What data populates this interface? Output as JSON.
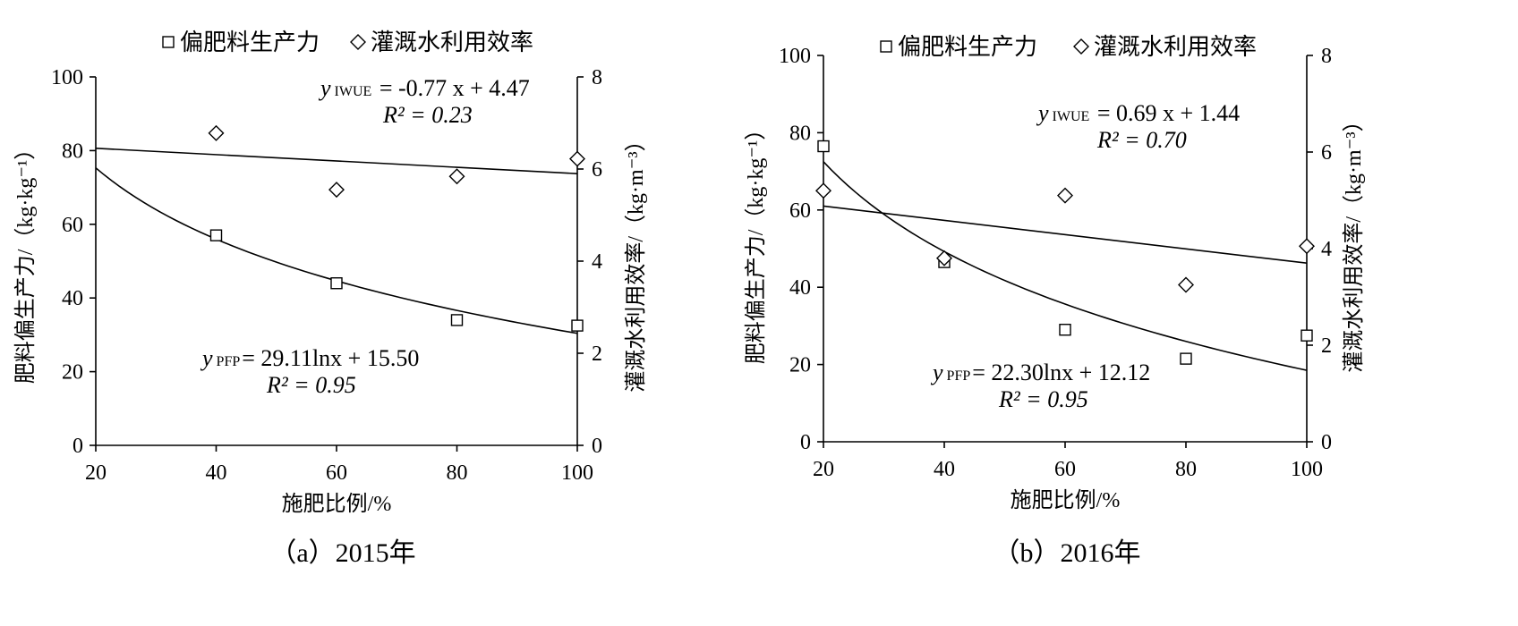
{
  "figure": {
    "chart_data": [
      {
        "type": "scatter",
        "panel_label": "（a）2015年",
        "xlabel": "施肥比例/%",
        "ylabel_left": "肥料偏生产力/（kg·kg⁻¹）",
        "ylabel_right": "灌溉水利用效率/（kg·m⁻³）",
        "xlim": [
          20,
          100
        ],
        "ylim_left": [
          0,
          100
        ],
        "ylim_right": [
          0,
          8
        ],
        "x_ticks": [
          "20",
          "40",
          "60",
          "80",
          "100"
        ],
        "y_left_ticks": [
          "0",
          "20",
          "40",
          "60",
          "80",
          "100"
        ],
        "y_right_ticks": [
          "0",
          "2",
          "4",
          "6",
          "8"
        ],
        "legend_position": "top",
        "series": [
          {
            "name": "偏肥料生产力",
            "axis": "left",
            "marker": "square",
            "x": [
              40,
              60,
              80,
              100
            ],
            "y": [
              57,
              44,
              34,
              32.5
            ]
          },
          {
            "name": "灌溉水利用效率",
            "axis": "right",
            "marker": "diamond",
            "x": [
              40,
              60,
              80,
              100
            ],
            "y": [
              6.78,
              5.55,
              5.84,
              6.22
            ]
          }
        ],
        "trendlines": [
          {
            "series": "偏肥料生产力",
            "kind": "log",
            "x_range": [
              20,
              100
            ],
            "y_at_start": 75.3,
            "y_at_end": 30.4
          },
          {
            "series": "灌溉水利用效率",
            "kind": "linear",
            "x_range": [
              20,
              100
            ],
            "y_at_start": 6.45,
            "y_at_end": 5.9
          }
        ],
        "annotations": {
          "iwue_eq": {
            "y": "y",
            "sub": "IWUE",
            "rest": " = -0.77 x + 4.47"
          },
          "iwue_r2": "R² = 0.23",
          "pfp_eq": {
            "y": "y",
            "sub": "PFP",
            "rest": "= 29.11lnx + 15.50"
          },
          "pfp_r2": "R² = 0.95"
        }
      },
      {
        "type": "scatter",
        "panel_label": "（b）2016年",
        "xlabel": "施肥比例/%",
        "ylabel_left": "肥料偏生产力/（kg·kg⁻¹）",
        "ylabel_right": "灌溉水利用效率/（kg·m⁻³）",
        "xlim": [
          20,
          100
        ],
        "ylim_left": [
          0,
          100
        ],
        "ylim_right": [
          0,
          8
        ],
        "x_ticks": [
          "20",
          "40",
          "60",
          "80",
          "100"
        ],
        "y_left_ticks": [
          "0",
          "20",
          "40",
          "60",
          "80",
          "100"
        ],
        "y_right_ticks": [
          "0",
          "2",
          "4",
          "6",
          "8"
        ],
        "legend_position": "top",
        "series": [
          {
            "name": "偏肥料生产力",
            "axis": "left",
            "marker": "square",
            "x": [
              20,
              40,
              60,
              80,
              100
            ],
            "y": [
              76.5,
              46.5,
              29,
              21.5,
              27.5
            ]
          },
          {
            "name": "灌溉水利用效率",
            "axis": "right",
            "marker": "diamond",
            "x": [
              20,
              40,
              60,
              80,
              100
            ],
            "y": [
              5.2,
              3.8,
              5.1,
              3.25,
              4.05
            ]
          }
        ],
        "trendlines": [
          {
            "series": "偏肥料生产力",
            "kind": "log",
            "x_range": [
              20,
              100
            ],
            "y_at_start": 72.5,
            "y_at_end": 18.5
          },
          {
            "series": "灌溉水利用效率",
            "kind": "linear",
            "x_range": [
              20,
              100
            ],
            "y_at_start": 4.88,
            "y_at_end": 3.7
          }
        ],
        "annotations": {
          "iwue_eq": {
            "y": "y",
            "sub": "IWUE",
            "rest": " = 0.69 x + 1.44"
          },
          "iwue_r2": "R² = 0.70",
          "pfp_eq": {
            "y": "y",
            "sub": "PFP",
            "rest": "= 22.30lnx + 12.12"
          },
          "pfp_r2": "R² = 0.95"
        }
      }
    ]
  }
}
